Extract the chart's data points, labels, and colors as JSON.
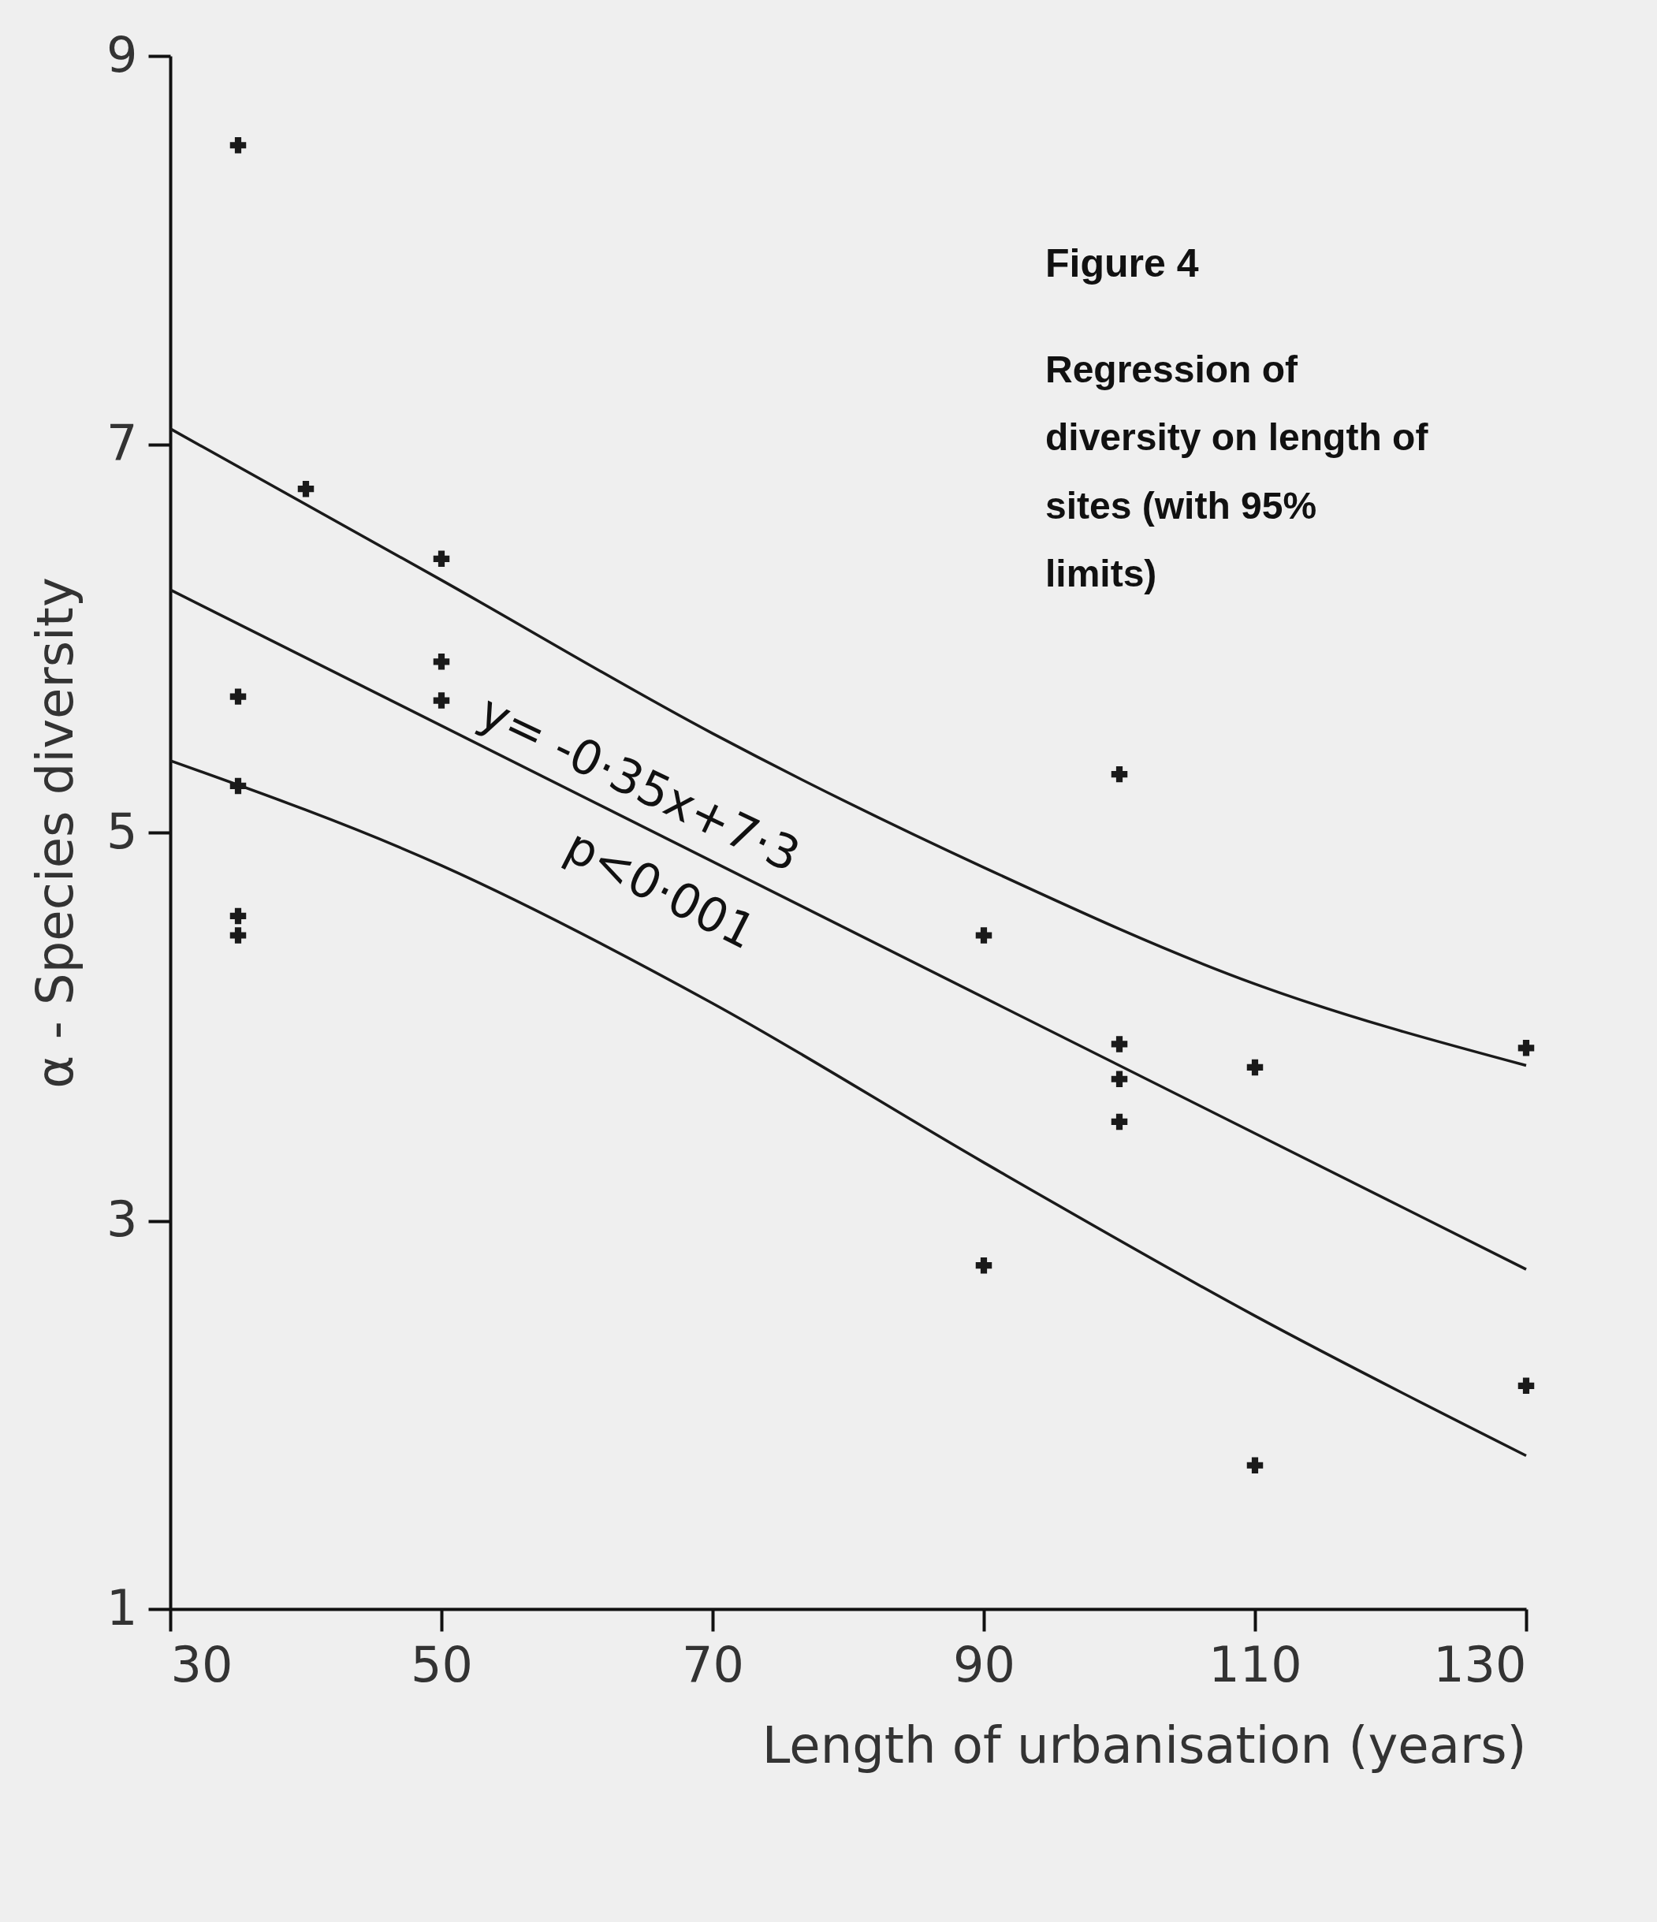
{
  "chart_data": {
    "type": "scatter",
    "xlabel": "Length of urbanisation (years)",
    "ylabel": "α - Species diversity",
    "annotations": [
      "Figure 4",
      "Regression of diversity on length of sites (with 95% limits)",
      "y= -0·35x+7·3",
      "p<0·001"
    ],
    "xlim": [
      30,
      130
    ],
    "ylim": [
      1,
      9
    ],
    "xticks": [
      30,
      50,
      70,
      90,
      110,
      130
    ],
    "yticks": [
      1,
      3,
      5,
      7,
      9
    ],
    "grid": false,
    "series": [
      {
        "marker": "cross",
        "color": "#1a1a1a",
        "x": [
          35,
          40,
          50,
          35,
          50,
          50,
          35,
          35,
          35,
          100,
          90,
          100,
          100,
          100,
          110,
          130,
          90,
          130,
          110
        ],
        "values": [
          8.54,
          6.77,
          6.41,
          5.7,
          5.88,
          5.68,
          5.24,
          4.57,
          4.47,
          5.3,
          4.47,
          3.91,
          3.73,
          3.51,
          3.79,
          3.89,
          2.77,
          2.15,
          1.74
        ]
      },
      {
        "type": "line",
        "color": "#1a1a1a",
        "x": [
          30,
          130
        ],
        "values": [
          6.25,
          2.75
        ]
      },
      {
        "type": "line",
        "color": "#1a1a1a",
        "x": [
          30,
          50,
          70,
          90,
          110,
          130
        ],
        "values": [
          7.08,
          6.3,
          5.51,
          4.82,
          4.22,
          3.8
        ]
      },
      {
        "type": "line",
        "color": "#1a1a1a",
        "x": [
          30,
          50,
          70,
          90,
          110,
          130
        ],
        "values": [
          5.37,
          4.83,
          4.12,
          3.3,
          2.51,
          1.79
        ]
      }
    ]
  }
}
